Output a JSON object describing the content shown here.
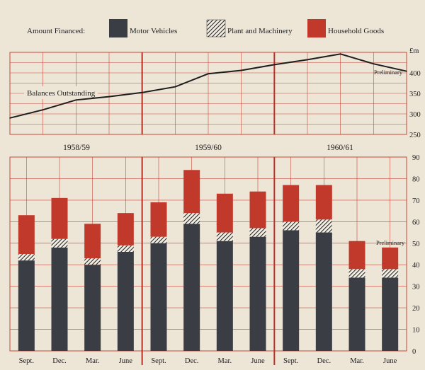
{
  "legend": {
    "title": "Amount Financed:",
    "items": [
      {
        "name": "Motor Vehicles",
        "key": "motor"
      },
      {
        "name": "Plant and Machinery",
        "key": "plant"
      },
      {
        "name": "Household Goods",
        "key": "household"
      }
    ]
  },
  "colors": {
    "background": "#ede5d6",
    "grid": "#c9463a",
    "divider": "#b8322a",
    "motor": "#3b3d44",
    "household": "#c0392b",
    "line": "#1e1e1e"
  },
  "chart_data": [
    {
      "type": "line",
      "title": "Balances Outstanding",
      "unit_label": "£m",
      "ylim": [
        250,
        450
      ],
      "yticks": [
        250,
        300,
        350,
        400
      ],
      "year_labels": [
        "1958/59",
        "1959/60",
        "1960/61"
      ],
      "x": [
        0,
        1,
        2,
        3,
        4,
        5,
        6,
        7,
        8,
        9,
        10,
        11,
        12
      ],
      "values": [
        290,
        310,
        334,
        342,
        352,
        366,
        398,
        406,
        420,
        432,
        446,
        422,
        404
      ],
      "annotation": "Preliminary",
      "grid": true
    },
    {
      "type": "bar",
      "stacked": true,
      "categories": [
        "Sept.",
        "Dec.",
        "Mar.",
        "June",
        "Sept.",
        "Dec.",
        "Mar.",
        "June",
        "Sept.",
        "Dec.",
        "Mar.",
        "June"
      ],
      "series": [
        {
          "name": "Motor Vehicles",
          "key": "motor",
          "values": [
            42,
            48,
            40,
            46,
            50,
            59,
            51,
            53,
            56,
            55,
            34,
            34
          ]
        },
        {
          "name": "Plant and Machinery",
          "key": "plant",
          "values": [
            3,
            4,
            3,
            3,
            3,
            5,
            4,
            4,
            4,
            6,
            4,
            4
          ]
        },
        {
          "name": "Household Goods",
          "key": "household",
          "values": [
            18,
            19,
            16,
            15,
            16,
            20,
            18,
            17,
            17,
            16,
            13,
            10
          ]
        }
      ],
      "ylim": [
        0,
        90
      ],
      "yticks": [
        0,
        10,
        20,
        30,
        40,
        50,
        60,
        70,
        80,
        90
      ],
      "annotation": "Preliminary",
      "grid": true
    }
  ]
}
